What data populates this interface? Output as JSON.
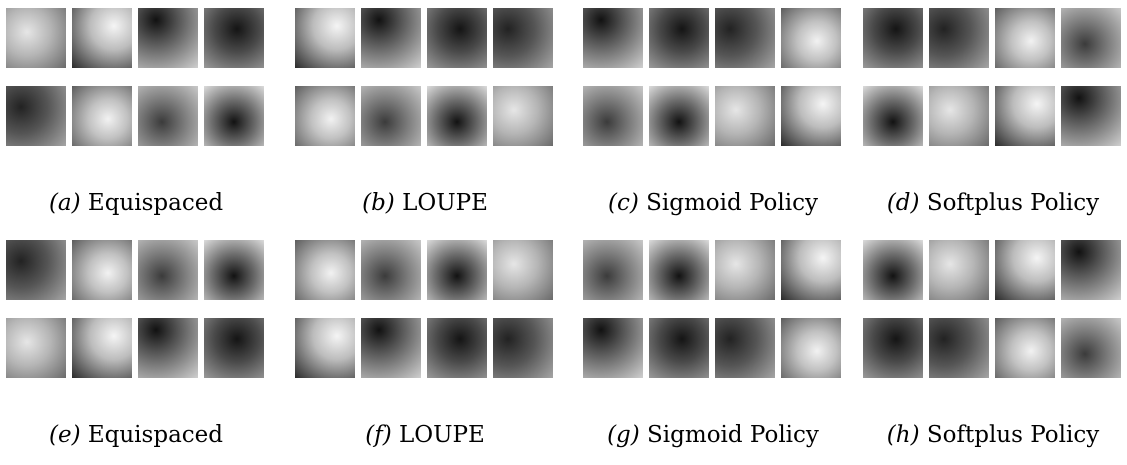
{
  "figure": {
    "panels": [
      {
        "label": "(a)",
        "name": "Equispaced"
      },
      {
        "label": "(b)",
        "name": "LOUPE"
      },
      {
        "label": "(c)",
        "name": "Sigmoid Policy"
      },
      {
        "label": "(d)",
        "name": "Softplus Policy"
      },
      {
        "label": "(e)",
        "name": "Equispaced"
      },
      {
        "label": "(f)",
        "name": "LOUPE"
      },
      {
        "label": "(g)",
        "name": "Sigmoid Policy"
      },
      {
        "label": "(h)",
        "name": "Softplus Policy"
      }
    ]
  }
}
